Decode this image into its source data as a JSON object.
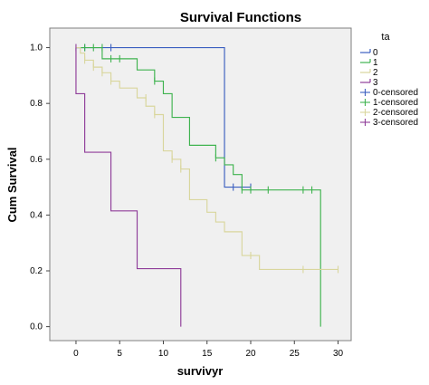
{
  "chart_data": {
    "type": "line",
    "title": "Survival Functions",
    "xlabel": "survivyr",
    "ylabel": "Cum Survival",
    "xlim": [
      -3,
      31.5
    ],
    "ylim": [
      -0.05,
      1.07
    ],
    "x_ticks": [
      0,
      5,
      10,
      15,
      20,
      25,
      30
    ],
    "x_tick_labels": [
      "0",
      "5",
      "10",
      "15",
      "20",
      "25",
      "30"
    ],
    "y_ticks": [
      0.0,
      0.2,
      0.4,
      0.6,
      0.8,
      1.0
    ],
    "y_tick_labels": [
      "0.0",
      "0.2",
      "0.4",
      "0.6",
      "0.8",
      "1.0"
    ],
    "plot_background": "#f0f0f0",
    "grid": false,
    "legend": {
      "title": "ta",
      "position": "right",
      "items": [
        {
          "label": "0",
          "color": "#3b5fc0",
          "type": "line"
        },
        {
          "label": "1",
          "color": "#3fb34f",
          "type": "line"
        },
        {
          "label": "2",
          "color": "#d9d69d",
          "type": "line"
        },
        {
          "label": "3",
          "color": "#8f3d99",
          "type": "line"
        },
        {
          "label": "0-censored",
          "color": "#3b5fc0",
          "type": "censor"
        },
        {
          "label": "1-censored",
          "color": "#3fb34f",
          "type": "censor"
        },
        {
          "label": "2-censored",
          "color": "#d9d69d",
          "type": "censor"
        },
        {
          "label": "3-censored",
          "color": "#8f3d99",
          "type": "censor"
        }
      ]
    },
    "series": [
      {
        "name": "0",
        "color": "#3b5fc0",
        "steps": [
          [
            0,
            1.0
          ],
          [
            17,
            0.5
          ],
          [
            20,
            0.5
          ]
        ],
        "censored": [
          [
            1,
            1.0
          ],
          [
            4,
            1.0
          ],
          [
            18,
            0.5
          ],
          [
            20,
            0.5
          ]
        ]
      },
      {
        "name": "1",
        "color": "#3fb34f",
        "steps": [
          [
            0,
            1.0
          ],
          [
            3,
            0.96
          ],
          [
            5,
            0.96
          ],
          [
            7,
            0.92
          ],
          [
            9,
            0.88
          ],
          [
            10,
            0.835
          ],
          [
            11,
            0.75
          ],
          [
            13,
            0.65
          ],
          [
            16,
            0.605
          ],
          [
            17,
            0.58
          ],
          [
            18,
            0.545
          ],
          [
            19,
            0.49
          ],
          [
            28,
            0.0
          ]
        ],
        "censored": [
          [
            1,
            1.0
          ],
          [
            2,
            1.0
          ],
          [
            3,
            1.0
          ],
          [
            4,
            0.96
          ],
          [
            5,
            0.96
          ],
          [
            9,
            0.88
          ],
          [
            16,
            0.605
          ],
          [
            19,
            0.49
          ],
          [
            20,
            0.49
          ],
          [
            22,
            0.49
          ],
          [
            26,
            0.49
          ],
          [
            27,
            0.49
          ]
        ]
      },
      {
        "name": "2",
        "color": "#d9d69d",
        "steps": [
          [
            0,
            1.0
          ],
          [
            0.5,
            0.98
          ],
          [
            1,
            0.955
          ],
          [
            2,
            0.93
          ],
          [
            3,
            0.91
          ],
          [
            4,
            0.88
          ],
          [
            5,
            0.855
          ],
          [
            7,
            0.82
          ],
          [
            8,
            0.79
          ],
          [
            9,
            0.76
          ],
          [
            10,
            0.63
          ],
          [
            11,
            0.6
          ],
          [
            12,
            0.565
          ],
          [
            13,
            0.455
          ],
          [
            15,
            0.41
          ],
          [
            16,
            0.375
          ],
          [
            17,
            0.34
          ],
          [
            19,
            0.255
          ],
          [
            21,
            0.205
          ],
          [
            30,
            0.205
          ]
        ],
        "censored": [
          [
            1,
            0.955
          ],
          [
            2,
            0.93
          ],
          [
            3,
            0.91
          ],
          [
            4,
            0.88
          ],
          [
            8,
            0.82
          ],
          [
            9,
            0.76
          ],
          [
            11,
            0.6
          ],
          [
            12,
            0.565
          ],
          [
            20,
            0.255
          ],
          [
            26,
            0.205
          ],
          [
            30,
            0.205
          ]
        ]
      },
      {
        "name": "3",
        "color": "#8f3d99",
        "steps": [
          [
            0,
            1.0
          ],
          [
            0,
            0.835
          ],
          [
            1,
            0.625
          ],
          [
            4,
            0.415
          ],
          [
            7,
            0.208
          ],
          [
            12,
            0.0
          ]
        ],
        "censored": [
          [
            0,
            1.0
          ]
        ]
      }
    ]
  }
}
